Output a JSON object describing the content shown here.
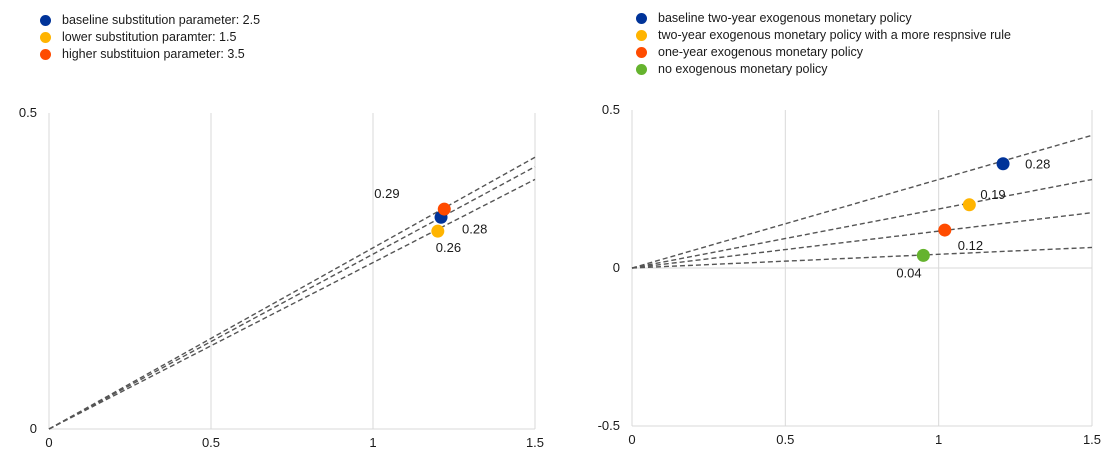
{
  "chart_data": [
    {
      "type": "scatter",
      "title": "",
      "xlabel": "",
      "ylabel": "",
      "xlim": [
        0,
        1.5
      ],
      "ylim": [
        0,
        0.5
      ],
      "x_ticks": [
        "0",
        "0.5",
        "1",
        "1.5"
      ],
      "y_ticks": [
        "0",
        "0.5"
      ],
      "grid": "vertical",
      "legend_position": "top-left",
      "series": [
        {
          "name": "baseline substitution parameter: 2.5",
          "color": "#003399",
          "x": 1.21,
          "y": 0.335,
          "slope_label": "0.28",
          "line_end_y": 0.415
        },
        {
          "name": "lower substitution paramter: 1.5",
          "color": "#ffb400",
          "x": 1.2,
          "y": 0.313,
          "slope_label": "0.26",
          "line_end_y": 0.395
        },
        {
          "name": "higher substituion parameter: 3.5",
          "color": "#ff4b00",
          "x": 1.22,
          "y": 0.348,
          "slope_label": "0.29",
          "line_end_y": 0.43
        }
      ]
    },
    {
      "type": "scatter",
      "title": "",
      "xlabel": "",
      "ylabel": "",
      "xlim": [
        0,
        1.5
      ],
      "ylim": [
        -0.5,
        0.5
      ],
      "x_ticks": [
        "0",
        "0.5",
        "1",
        "1.5"
      ],
      "y_ticks": [
        "0.5",
        "0",
        "-0.5"
      ],
      "grid": "vertical",
      "legend_position": "top-left",
      "series": [
        {
          "name": "baseline two-year exogenous monetary policy",
          "color": "#003399",
          "x": 1.21,
          "y": 0.33,
          "slope_label": "0.28",
          "line_end_y": 0.42
        },
        {
          "name": "two-year exogenous monetary policy with a more respnsive rule",
          "color": "#ffb400",
          "x": 1.1,
          "y": 0.2,
          "slope_label": "0.19",
          "line_end_y": 0.28
        },
        {
          "name": "one-year exogenous monetary policy",
          "color": "#ff4b00",
          "x": 1.02,
          "y": 0.12,
          "slope_label": "0.12",
          "line_end_y": 0.175
        },
        {
          "name": "no exogenous monetary policy",
          "color": "#65b32e",
          "x": 0.95,
          "y": 0.04,
          "slope_label": "0.04",
          "line_end_y": 0.065
        }
      ]
    }
  ]
}
